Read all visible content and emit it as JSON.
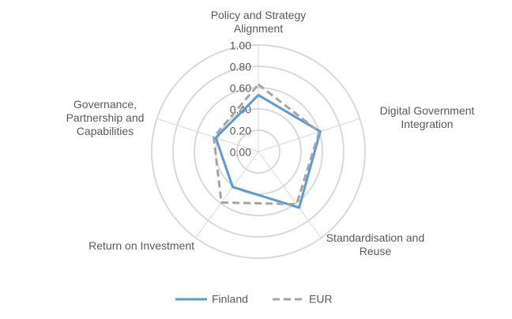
{
  "chart_data": {
    "type": "radar",
    "categories": [
      "Policy and Strategy Alignment",
      "Digital Government Integration",
      "Standardisation and Reuse",
      "Return on Investment",
      "Governance, Partnership and Capabilities"
    ],
    "series": [
      {
        "name": "Finland",
        "color": "#5b9bd5",
        "dash": false,
        "values": [
          0.53,
          0.61,
          0.65,
          0.41,
          0.42
        ]
      },
      {
        "name": "EUR",
        "color": "#a5a5a5",
        "dash": true,
        "values": [
          0.63,
          0.6,
          0.61,
          0.59,
          0.44
        ]
      }
    ],
    "rlim": [
      0,
      1
    ],
    "rticks": [
      {
        "value": 0,
        "label": "0.00"
      },
      {
        "value": 0.2,
        "label": "0.20"
      },
      {
        "value": 0.4,
        "label": "0.40"
      },
      {
        "value": 0.6,
        "label": "0.60"
      },
      {
        "value": 0.8,
        "label": "0.80"
      },
      {
        "value": 1,
        "label": "1.00"
      }
    ],
    "grid": true,
    "legend": "bottom"
  }
}
